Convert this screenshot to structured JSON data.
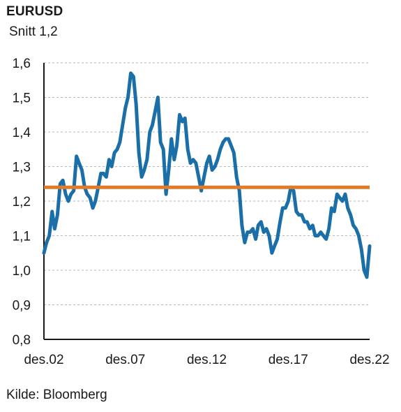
{
  "header": {
    "title": "EURUSD",
    "subtitle": "Snitt 1,2"
  },
  "footer": {
    "source": "Kilde: Bloomberg"
  },
  "chart_data": {
    "type": "line",
    "title": "EURUSD",
    "subtitle": "Snitt 1,2",
    "xlabel": "",
    "ylabel": "",
    "x_range": [
      2002.92,
      2022.92
    ],
    "ylim": [
      0.8,
      1.6
    ],
    "y_ticks": [
      0.8,
      0.9,
      1.0,
      1.1,
      1.2,
      1.3,
      1.4,
      1.5,
      1.6
    ],
    "y_tick_labels": [
      "0,8",
      "0,9",
      "1,0",
      "1,1",
      "1,2",
      "1,3",
      "1,4",
      "1,5",
      "1,6"
    ],
    "x_ticks": [
      2002.92,
      2007.92,
      2012.92,
      2017.92,
      2022.92
    ],
    "x_tick_labels": [
      "des.02",
      "des.07",
      "des.12",
      "des.17",
      "des.22"
    ],
    "grid": "horizontal dashed",
    "colors": {
      "series": "#1b6fa8",
      "average": "#e07b2a",
      "grid": "#b5b5b5",
      "axis": "#1a1a1a"
    },
    "series": [
      {
        "values": [
          [
            2002.92,
            1.05
          ],
          [
            2003.08,
            1.08
          ],
          [
            2003.25,
            1.1
          ],
          [
            2003.42,
            1.17
          ],
          [
            2003.58,
            1.12
          ],
          [
            2003.75,
            1.16
          ],
          [
            2003.92,
            1.25
          ],
          [
            2004.08,
            1.26
          ],
          [
            2004.25,
            1.22
          ],
          [
            2004.42,
            1.2
          ],
          [
            2004.58,
            1.22
          ],
          [
            2004.75,
            1.23
          ],
          [
            2004.92,
            1.33
          ],
          [
            2005.08,
            1.31
          ],
          [
            2005.25,
            1.29
          ],
          [
            2005.42,
            1.24
          ],
          [
            2005.58,
            1.22
          ],
          [
            2005.75,
            1.21
          ],
          [
            2005.92,
            1.18
          ],
          [
            2006.08,
            1.2
          ],
          [
            2006.25,
            1.24
          ],
          [
            2006.42,
            1.28
          ],
          [
            2006.58,
            1.28
          ],
          [
            2006.75,
            1.27
          ],
          [
            2006.92,
            1.32
          ],
          [
            2007.08,
            1.3
          ],
          [
            2007.25,
            1.34
          ],
          [
            2007.42,
            1.35
          ],
          [
            2007.58,
            1.37
          ],
          [
            2007.75,
            1.42
          ],
          [
            2007.92,
            1.47
          ],
          [
            2008.08,
            1.5
          ],
          [
            2008.25,
            1.57
          ],
          [
            2008.42,
            1.56
          ],
          [
            2008.58,
            1.48
          ],
          [
            2008.75,
            1.34
          ],
          [
            2008.92,
            1.27
          ],
          [
            2009.08,
            1.29
          ],
          [
            2009.25,
            1.32
          ],
          [
            2009.42,
            1.4
          ],
          [
            2009.58,
            1.42
          ],
          [
            2009.75,
            1.46
          ],
          [
            2009.92,
            1.5
          ],
          [
            2010.08,
            1.37
          ],
          [
            2010.25,
            1.35
          ],
          [
            2010.42,
            1.22
          ],
          [
            2010.58,
            1.29
          ],
          [
            2010.75,
            1.38
          ],
          [
            2010.92,
            1.32
          ],
          [
            2011.08,
            1.36
          ],
          [
            2011.25,
            1.45
          ],
          [
            2011.42,
            1.43
          ],
          [
            2011.58,
            1.44
          ],
          [
            2011.75,
            1.35
          ],
          [
            2011.92,
            1.31
          ],
          [
            2012.08,
            1.32
          ],
          [
            2012.25,
            1.31
          ],
          [
            2012.42,
            1.27
          ],
          [
            2012.58,
            1.23
          ],
          [
            2012.92,
            1.31
          ],
          [
            2013.08,
            1.33
          ],
          [
            2013.25,
            1.29
          ],
          [
            2013.42,
            1.3
          ],
          [
            2013.58,
            1.32
          ],
          [
            2013.75,
            1.35
          ],
          [
            2013.92,
            1.37
          ],
          [
            2014.08,
            1.38
          ],
          [
            2014.25,
            1.38
          ],
          [
            2014.42,
            1.36
          ],
          [
            2014.58,
            1.34
          ],
          [
            2014.75,
            1.27
          ],
          [
            2014.92,
            1.23
          ],
          [
            2015.08,
            1.13
          ],
          [
            2015.25,
            1.08
          ],
          [
            2015.42,
            1.11
          ],
          [
            2015.58,
            1.11
          ],
          [
            2015.75,
            1.12
          ],
          [
            2015.92,
            1.09
          ],
          [
            2016.08,
            1.13
          ],
          [
            2016.25,
            1.14
          ],
          [
            2016.42,
            1.11
          ],
          [
            2016.58,
            1.12
          ],
          [
            2016.75,
            1.1
          ],
          [
            2016.92,
            1.05
          ],
          [
            2017.08,
            1.07
          ],
          [
            2017.25,
            1.09
          ],
          [
            2017.42,
            1.14
          ],
          [
            2017.58,
            1.18
          ],
          [
            2017.75,
            1.18
          ],
          [
            2017.92,
            1.2
          ],
          [
            2018.08,
            1.24
          ],
          [
            2018.25,
            1.23
          ],
          [
            2018.42,
            1.17
          ],
          [
            2018.58,
            1.16
          ],
          [
            2018.75,
            1.16
          ],
          [
            2018.92,
            1.14
          ],
          [
            2019.08,
            1.14
          ],
          [
            2019.25,
            1.12
          ],
          [
            2019.42,
            1.13
          ],
          [
            2019.58,
            1.1
          ],
          [
            2019.75,
            1.1
          ],
          [
            2019.92,
            1.11
          ],
          [
            2020.08,
            1.1
          ],
          [
            2020.25,
            1.09
          ],
          [
            2020.42,
            1.12
          ],
          [
            2020.58,
            1.18
          ],
          [
            2020.75,
            1.17
          ],
          [
            2020.92,
            1.22
          ],
          [
            2021.08,
            1.21
          ],
          [
            2021.25,
            1.2
          ],
          [
            2021.42,
            1.22
          ],
          [
            2021.58,
            1.18
          ],
          [
            2021.75,
            1.16
          ],
          [
            2021.92,
            1.13
          ],
          [
            2022.08,
            1.12
          ],
          [
            2022.25,
            1.1
          ],
          [
            2022.42,
            1.06
          ],
          [
            2022.58,
            1.0
          ],
          [
            2022.75,
            0.98
          ],
          [
            2022.92,
            1.07
          ]
        ]
      },
      {
        "type": "hline",
        "value": 1.24
      }
    ],
    "source": "Kilde: Bloomberg"
  }
}
